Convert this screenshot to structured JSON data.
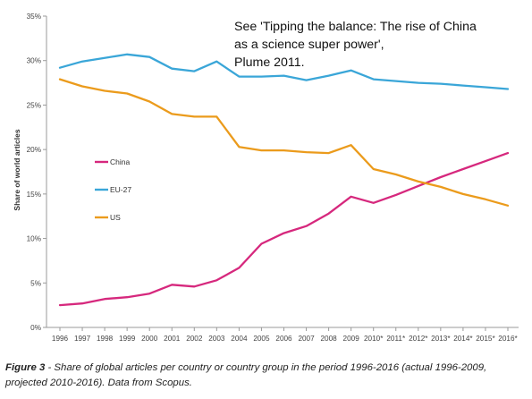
{
  "chart_data": {
    "type": "line",
    "ylabel": "Share of world articles",
    "xlabel": "",
    "ylim": [
      0,
      35
    ],
    "yticks": [
      "0%",
      "5%",
      "10%",
      "15%",
      "20%",
      "25%",
      "30%",
      "35%"
    ],
    "x": [
      "1996",
      "1997",
      "1998",
      "1999",
      "2000",
      "2001",
      "2002",
      "2003",
      "2004",
      "2005",
      "2006",
      "2007",
      "2008",
      "2009",
      "2010*",
      "2011*",
      "2012*",
      "2013*",
      "2014*",
      "2015*",
      "2016*"
    ],
    "annotation": [
      "See 'Tipping the balance: The rise of China",
      "as a science super power',",
      "Plume 2011."
    ],
    "legend_placement": "left",
    "grid": false,
    "series": [
      {
        "name": "China",
        "color": "#d6287d",
        "values": [
          2.5,
          2.7,
          3.2,
          3.4,
          3.8,
          4.8,
          4.6,
          5.3,
          6.7,
          9.4,
          10.6,
          11.4,
          12.8,
          14.7,
          14.0,
          14.9,
          15.9,
          16.9,
          17.8,
          18.7,
          19.6
        ]
      },
      {
        "name": "EU-27",
        "color": "#3aa6d8",
        "values": [
          29.2,
          29.9,
          30.3,
          30.7,
          30.4,
          29.1,
          28.8,
          29.9,
          28.2,
          28.2,
          28.3,
          27.8,
          28.3,
          28.9,
          27.9,
          27.7,
          27.5,
          27.4,
          27.2,
          27.0,
          26.8
        ]
      },
      {
        "name": "US",
        "color": "#eb9b1c",
        "values": [
          27.9,
          27.1,
          26.6,
          26.3,
          25.4,
          24.0,
          23.7,
          23.7,
          20.3,
          19.9,
          19.9,
          19.7,
          19.6,
          20.5,
          17.8,
          17.2,
          16.4,
          15.8,
          15.0,
          14.4,
          13.7
        ]
      }
    ]
  },
  "caption": {
    "label": "Figure 3",
    "text": " - Share of global articles per country or country group in the period 1996-2016 (actual 1996-2009, projected 2010-2016). Data from Scopus."
  }
}
